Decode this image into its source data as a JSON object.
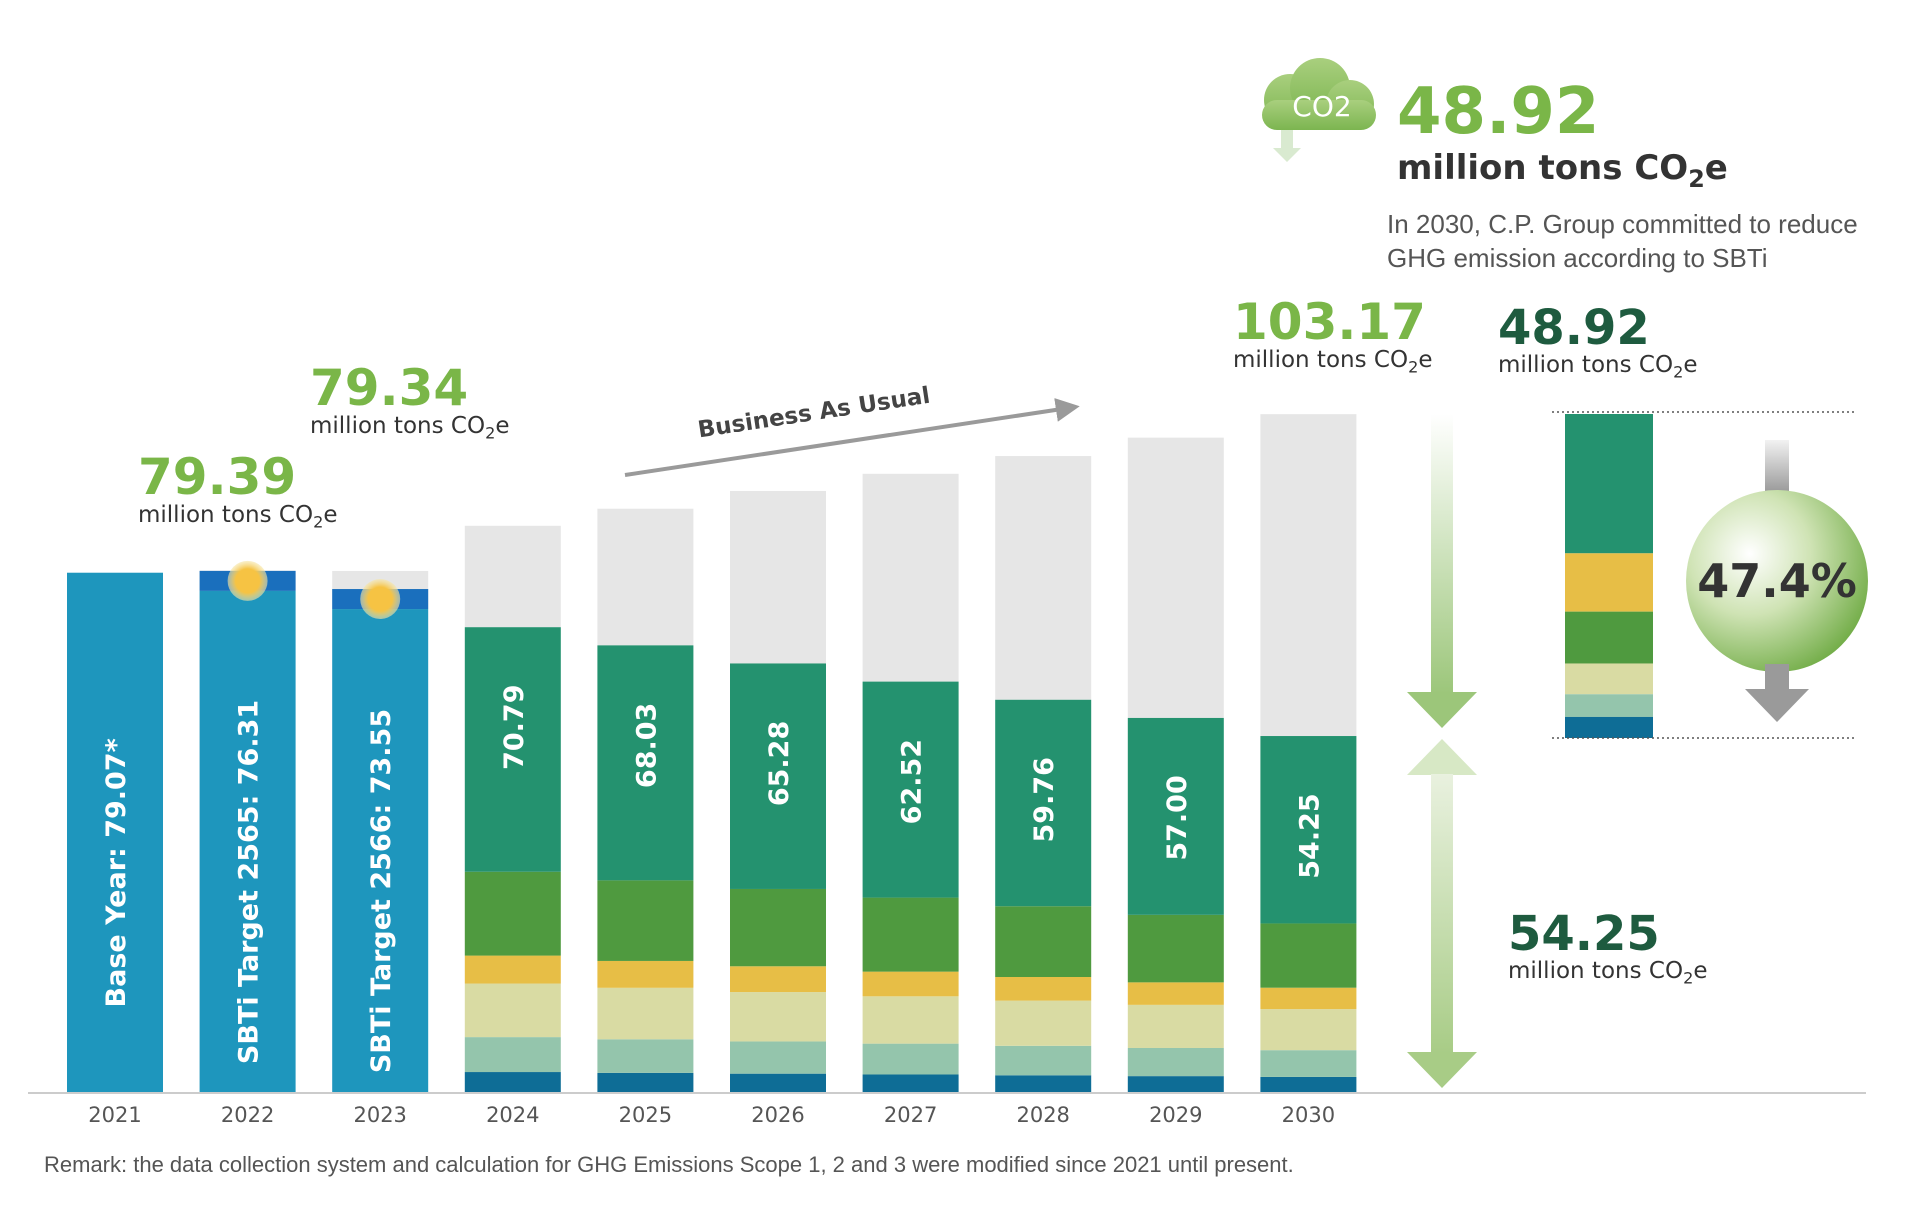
{
  "chart_data": {
    "type": "bar",
    "categories": [
      "2021",
      "2022",
      "2023",
      "2024",
      "2025",
      "2026",
      "2027",
      "2028",
      "2029",
      "2030"
    ],
    "bar_labels": [
      "Base Year: 79.07*",
      "SBTi Target 2565: 76.31",
      "SBTi Target 2566: 73.55",
      "70.79",
      "68.03",
      "65.28",
      "62.52",
      "59.76",
      "57.00",
      "54.25"
    ],
    "target_values": [
      79.07,
      76.31,
      73.55,
      70.79,
      68.03,
      65.28,
      62.52,
      59.76,
      57.0,
      54.25
    ],
    "total_values": [
      79.07,
      79.39,
      79.34,
      86.2,
      88.8,
      91.5,
      94.1,
      96.8,
      99.6,
      103.17
    ],
    "colors": {
      "base": "#1e96bd",
      "actual_top": "#1a6fbd",
      "gap": "#e6e6e6",
      "segments": [
        "#24926f",
        "#4f9a3f",
        "#e7be46",
        "#d9dba3",
        "#94c5ac",
        "#0e6d96"
      ],
      "accent_green": "#7ab648",
      "dark_green": "#1e5b3f"
    },
    "arrow_label": "Business As Usual",
    "reduction_percent": "47.4%",
    "callouts": {
      "y2022": {
        "value": "79.39",
        "unit": "million tons CO",
        "sub": "2",
        "tail": "e"
      },
      "y2023": {
        "value": "79.34",
        "unit": "million tons CO",
        "sub": "2",
        "tail": "e"
      },
      "bau2030": {
        "value": "103.17",
        "unit": "million tons CO",
        "sub": "2",
        "tail": "e"
      },
      "reduction": {
        "value": "48.92",
        "unit": "million tons CO",
        "sub": "2",
        "tail": "e"
      },
      "remaining": {
        "value": "54.25",
        "unit": "million tons CO",
        "sub": "2",
        "tail": "e"
      },
      "headline": {
        "value": "48.92",
        "unit": "million  tons  CO",
        "sub": "2",
        "tail": "e"
      }
    },
    "co2_icon_label": "CO2",
    "commitment_text": "In 2030, C.P. Group committed to reduce GHG emission according to SBTi",
    "remark": "Remark: the data collection system and calculation for GHG Emissions Scope 1, 2 and 3 were modified since 2021 until present."
  }
}
